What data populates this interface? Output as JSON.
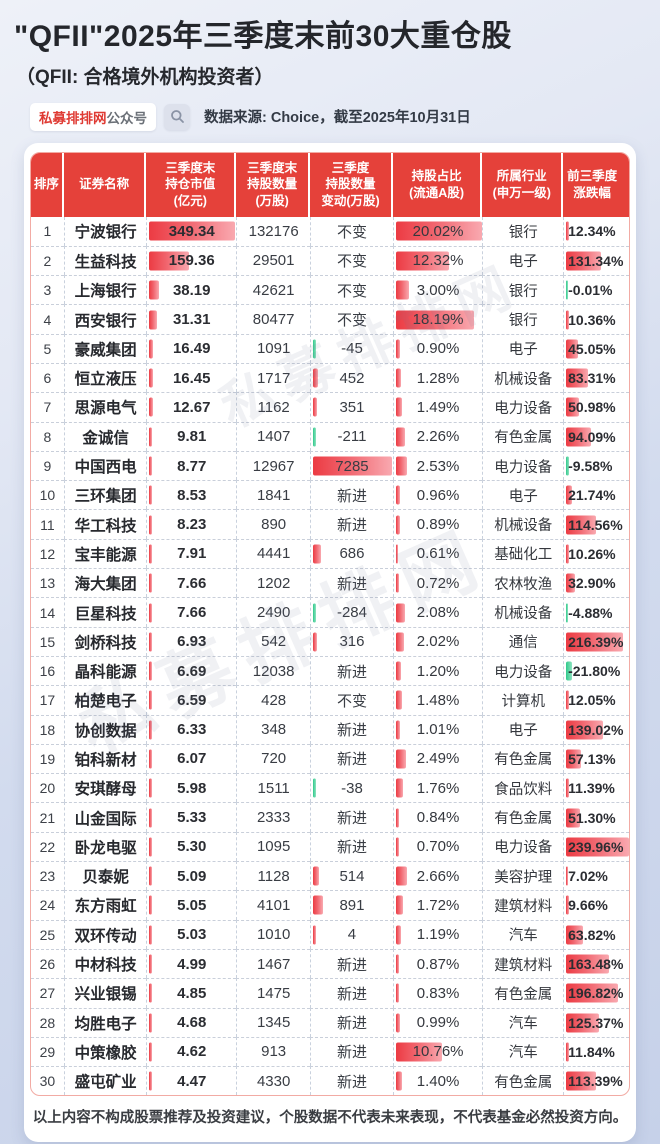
{
  "header": {
    "title": "\"QFII\"2025年三季度末前30大重仓股",
    "subtitle": "（QFII: 合格境外机构投资者）",
    "badge_brand": "私募排排网",
    "badge_suffix": "公众号",
    "source": "数据来源: Choice，截至2025年10月31日",
    "watermark": "私募排排网"
  },
  "footer": {
    "disclaimer": "以上内容不构成股票推荐及投资建议，个股数据不代表未来表现，不代表基金必然投资方向。"
  },
  "colors": {
    "header_red": "#e5413a",
    "bar_red_start": "#ec3b43",
    "bar_red_end": "#f9a9b0",
    "bar_green": "#2fc98b",
    "brand_red": "#df3a33",
    "table_border": "#f2aba4"
  },
  "chart_data": {
    "type": "table",
    "title": "\"QFII\"2025年三季度末前30大重仓股",
    "columns": [
      "排序",
      "证券名称",
      "三季度末\n持仓市值\n(亿元)",
      "三季度末\n持股数量\n(万股)",
      "三季度\n持股数量\n变动(万股)",
      "持股占比\n(流通A股)",
      "所属行业\n(申万一级)",
      "前三季度\n涨跌幅"
    ],
    "rows": [
      [
        "1",
        "宁波银行",
        "349.34",
        "132176",
        "不变",
        "20.02%",
        "银行",
        "12.34%"
      ],
      [
        "2",
        "生益科技",
        "159.36",
        "29501",
        "不变",
        "12.32%",
        "电子",
        "131.34%"
      ],
      [
        "3",
        "上海银行",
        "38.19",
        "42621",
        "不变",
        "3.00%",
        "银行",
        "-0.01%"
      ],
      [
        "4",
        "西安银行",
        "31.31",
        "80477",
        "不变",
        "18.19%",
        "银行",
        "10.36%"
      ],
      [
        "5",
        "豪威集团",
        "16.49",
        "1091",
        "-45",
        "0.90%",
        "电子",
        "45.05%"
      ],
      [
        "6",
        "恒立液压",
        "16.45",
        "1717",
        "452",
        "1.28%",
        "机械设备",
        "83.31%"
      ],
      [
        "7",
        "思源电气",
        "12.67",
        "1162",
        "351",
        "1.49%",
        "电力设备",
        "50.98%"
      ],
      [
        "8",
        "金诚信",
        "9.81",
        "1407",
        "-211",
        "2.26%",
        "有色金属",
        "94.09%"
      ],
      [
        "9",
        "中国西电",
        "8.77",
        "12967",
        "7285",
        "2.53%",
        "电力设备",
        "-9.58%"
      ],
      [
        "10",
        "三环集团",
        "8.53",
        "1841",
        "新进",
        "0.96%",
        "电子",
        "21.74%"
      ],
      [
        "11",
        "华工科技",
        "8.23",
        "890",
        "新进",
        "0.89%",
        "机械设备",
        "114.56%"
      ],
      [
        "12",
        "宝丰能源",
        "7.91",
        "4441",
        "686",
        "0.61%",
        "基础化工",
        "10.26%"
      ],
      [
        "13",
        "海大集团",
        "7.66",
        "1202",
        "新进",
        "0.72%",
        "农林牧渔",
        "32.90%"
      ],
      [
        "14",
        "巨星科技",
        "7.66",
        "2490",
        "-284",
        "2.08%",
        "机械设备",
        "-4.88%"
      ],
      [
        "15",
        "剑桥科技",
        "6.93",
        "542",
        "316",
        "2.02%",
        "通信",
        "216.39%"
      ],
      [
        "16",
        "晶科能源",
        "6.69",
        "12038",
        "新进",
        "1.20%",
        "电力设备",
        "-21.80%"
      ],
      [
        "17",
        "柏楚电子",
        "6.59",
        "428",
        "不变",
        "1.48%",
        "计算机",
        "12.05%"
      ],
      [
        "18",
        "协创数据",
        "6.33",
        "348",
        "新进",
        "1.01%",
        "电子",
        "139.02%"
      ],
      [
        "19",
        "铂科新材",
        "6.07",
        "720",
        "新进",
        "2.49%",
        "有色金属",
        "57.13%"
      ],
      [
        "20",
        "安琪酵母",
        "5.98",
        "1511",
        "-38",
        "1.76%",
        "食品饮料",
        "11.39%"
      ],
      [
        "21",
        "山金国际",
        "5.33",
        "2333",
        "新进",
        "0.84%",
        "有色金属",
        "51.30%"
      ],
      [
        "22",
        "卧龙电驱",
        "5.30",
        "1095",
        "新进",
        "0.70%",
        "电力设备",
        "239.96%"
      ],
      [
        "23",
        "贝泰妮",
        "5.09",
        "1128",
        "514",
        "2.66%",
        "美容护理",
        "7.02%"
      ],
      [
        "24",
        "东方雨虹",
        "5.05",
        "4101",
        "891",
        "1.72%",
        "建筑材料",
        "9.66%"
      ],
      [
        "25",
        "双环传动",
        "5.03",
        "1010",
        "4",
        "1.19%",
        "汽车",
        "63.82%"
      ],
      [
        "26",
        "中材科技",
        "4.99",
        "1467",
        "新进",
        "0.87%",
        "建筑材料",
        "163.48%"
      ],
      [
        "27",
        "兴业银锡",
        "4.85",
        "1475",
        "新进",
        "0.83%",
        "有色金属",
        "196.82%"
      ],
      [
        "28",
        "均胜电子",
        "4.68",
        "1345",
        "新进",
        "0.99%",
        "汽车",
        "125.37%"
      ],
      [
        "29",
        "中策橡胶",
        "4.62",
        "913",
        "新进",
        "10.76%",
        "汽车",
        "11.84%"
      ],
      [
        "30",
        "盛屯矿业",
        "4.47",
        "4330",
        "新进",
        "1.40%",
        "有色金属",
        "113.39%"
      ]
    ]
  }
}
